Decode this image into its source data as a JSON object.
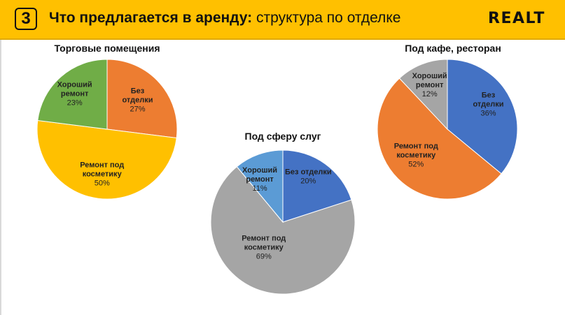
{
  "header": {
    "number": "3",
    "title_bold": "Что предлагается в аренду:",
    "title_rest": " структура по отделке",
    "logo": "REALT",
    "background": "#FFC000"
  },
  "chart_data": [
    {
      "type": "pie",
      "title": "Торговые помещения",
      "slices": [
        {
          "label": "Без отделки",
          "value": 27,
          "value_text": "27%",
          "color": "#ED7D31"
        },
        {
          "label": "Ремонт под косметику",
          "value": 50,
          "value_text": "50%",
          "color": "#FFC000"
        },
        {
          "label": "Хороший ремонт",
          "value": 23,
          "value_text": "23%",
          "color": "#70AD47"
        }
      ]
    },
    {
      "type": "pie",
      "title": "Под сферу слуг",
      "slices": [
        {
          "label": "Без отделки",
          "value": 20,
          "value_text": "20%",
          "color": "#4472C4"
        },
        {
          "label": "Ремонт под косметику",
          "value": 69,
          "value_text": "69%",
          "color": "#A5A5A5"
        },
        {
          "label": "Хороший ремонт",
          "value": 11,
          "value_text": "11%",
          "color": "#5B9BD5"
        }
      ]
    },
    {
      "type": "pie",
      "title": "Под кафе, ресторан",
      "slices": [
        {
          "label": "Без отделки",
          "value": 36,
          "value_text": "36%",
          "color": "#4472C4"
        },
        {
          "label": "Ремонт под косметику",
          "value": 52,
          "value_text": "52%",
          "color": "#ED7D31"
        },
        {
          "label": "Хороший ремонт",
          "value": 12,
          "value_text": "12%",
          "color": "#A5A5A5"
        }
      ]
    }
  ]
}
